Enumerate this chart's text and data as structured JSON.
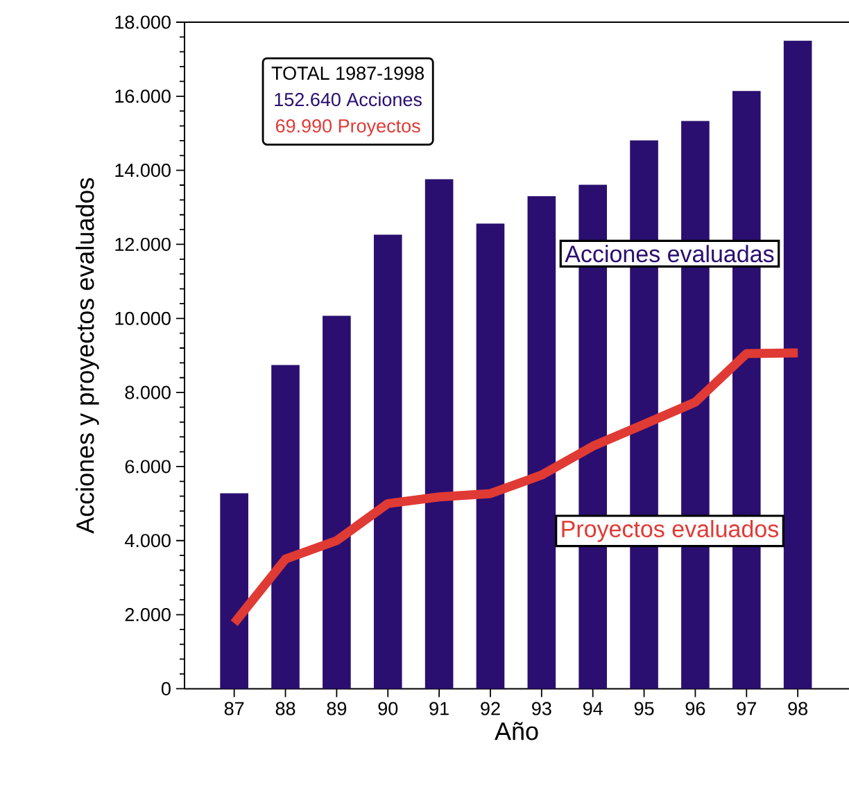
{
  "chart_data": {
    "type": "bar",
    "xlabel": "Año",
    "ylabel": "Acciones y proyectos evaluados",
    "categories": [
      "87",
      "88",
      "89",
      "90",
      "91",
      "92",
      "93",
      "94",
      "95",
      "96",
      "97",
      "98"
    ],
    "series": [
      {
        "name": "Acciones evaluadas",
        "color": "#2a0f70",
        "values": [
          5280,
          8740,
          10070,
          12260,
          13760,
          12560,
          13300,
          13610,
          14810,
          15330,
          16140,
          17500
        ]
      },
      {
        "name": "Proyectos evaluados",
        "type": "line",
        "color": "#e03a35",
        "values": [
          1770,
          3500,
          4000,
          5000,
          5180,
          5270,
          5770,
          6550,
          7140,
          7740,
          9050,
          9070
        ]
      }
    ],
    "ylim": [
      0,
      18000
    ],
    "yticks": [
      {
        "value": 0,
        "label": "0"
      },
      {
        "value": 2000,
        "label": "2.000"
      },
      {
        "value": 4000,
        "label": "4.000"
      },
      {
        "value": 6000,
        "label": "6.000"
      },
      {
        "value": 8000,
        "label": "8.000"
      },
      {
        "value": 10000,
        "label": "10.000"
      },
      {
        "value": 12000,
        "label": "12.000"
      },
      {
        "value": 14000,
        "label": "14.000"
      },
      {
        "value": 16000,
        "label": "16.000"
      },
      {
        "value": 18000,
        "label": "18.000"
      }
    ],
    "annotations": [
      "TOTAL 1987-1998",
      "152.640 Acciones",
      "69.990 Proyectos"
    ],
    "legend": false,
    "grid": false,
    "marker": "none"
  }
}
